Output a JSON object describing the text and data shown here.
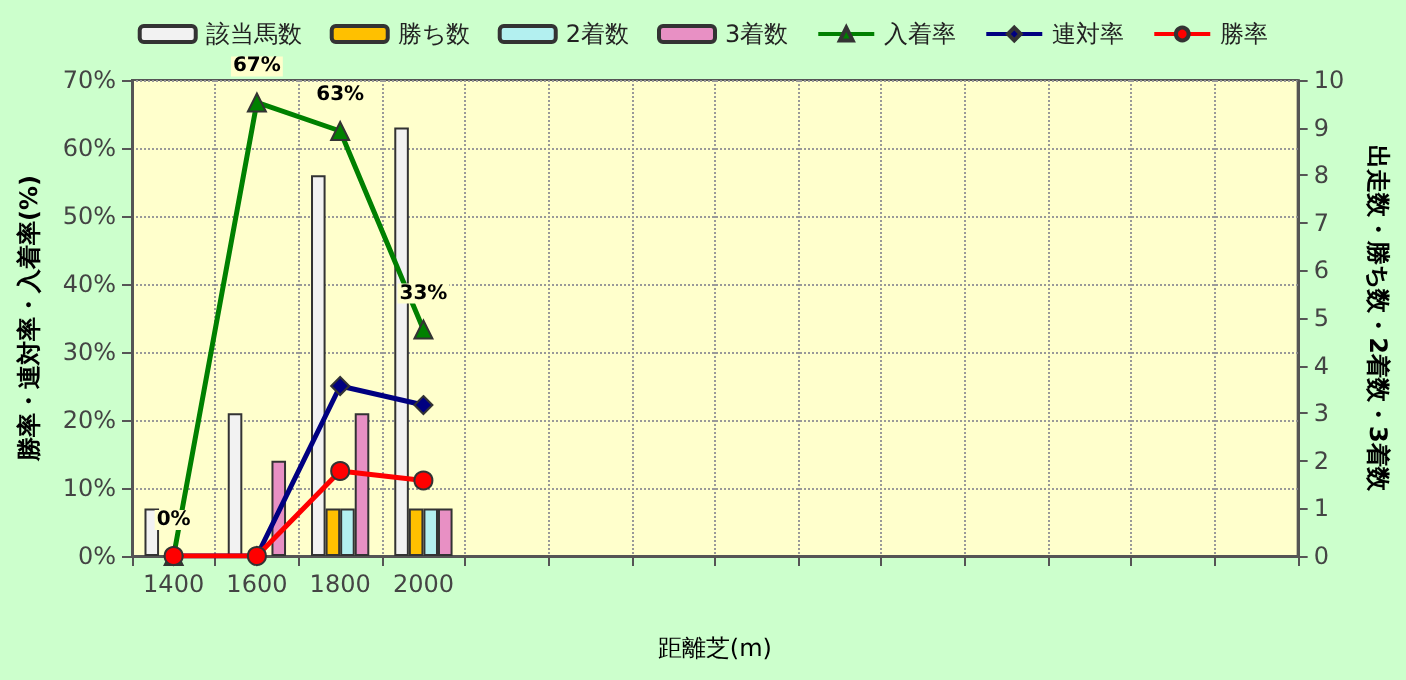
{
  "chart_data": {
    "type": "bar",
    "xlabel": "距離芝(m)",
    "ylabel": "勝率・連対率・入着率(%)",
    "y2label": "出走数・勝ち数・2着数・3着数",
    "categories": [
      "1400",
      "1600",
      "1800",
      "2000",
      null,
      null,
      null,
      null,
      null,
      null,
      null,
      null,
      null,
      null
    ],
    "series": [
      {
        "name": "該当馬数",
        "axis": "y2",
        "color": "#f2f2f2",
        "values": [
          1,
          3,
          8,
          9,
          null,
          null,
          null,
          null,
          null,
          null,
          null,
          null,
          null,
          null
        ]
      },
      {
        "name": "勝ち数",
        "axis": "y2",
        "color": "#ffc000",
        "values": [
          0,
          0,
          1,
          1,
          null,
          null,
          null,
          null,
          null,
          null,
          null,
          null,
          null,
          null
        ]
      },
      {
        "name": "2着数",
        "axis": "y2",
        "color": "#b3f0f0",
        "values": [
          0,
          0,
          1,
          1,
          null,
          null,
          null,
          null,
          null,
          null,
          null,
          null,
          null,
          null
        ]
      },
      {
        "name": "3着数",
        "axis": "y2",
        "color": "#e890c4",
        "values": [
          0,
          2,
          3,
          1,
          null,
          null,
          null,
          null,
          null,
          null,
          null,
          null,
          null,
          null
        ]
      },
      {
        "name": "入着率",
        "type": "line",
        "color": "#008000",
        "marker": "triangle",
        "values": [
          0,
          66.7,
          62.5,
          33.3,
          null,
          null,
          null,
          null,
          null,
          null,
          null,
          null,
          null,
          null
        ],
        "value_labels": [
          "0%",
          "67%",
          "63%",
          "33%",
          null,
          null,
          null,
          null,
          null,
          null,
          null,
          null,
          null,
          null
        ]
      },
      {
        "name": "連対率",
        "type": "line",
        "color": "#000080",
        "marker": "diamond",
        "values": [
          0,
          0,
          25,
          22.2,
          null,
          null,
          null,
          null,
          null,
          null,
          null,
          null,
          null,
          null
        ]
      },
      {
        "name": "勝率",
        "type": "line",
        "color": "#ff0000",
        "marker": "circle",
        "values": [
          0,
          0,
          12.5,
          11.1,
          null,
          null,
          null,
          null,
          null,
          null,
          null,
          null,
          null,
          null
        ]
      }
    ],
    "ylim": [
      0,
      70
    ],
    "yticks": [
      {
        "value": 0,
        "label": "0%"
      },
      {
        "value": 10,
        "label": "10%"
      },
      {
        "value": 20,
        "label": "20%"
      },
      {
        "value": 30,
        "label": "30%"
      },
      {
        "value": 40,
        "label": "40%"
      },
      {
        "value": 50,
        "label": "50%"
      },
      {
        "value": 60,
        "label": "60%"
      },
      {
        "value": 70,
        "label": "70%"
      }
    ],
    "y2lim": [
      0,
      10
    ],
    "y2ticks": [
      0,
      1,
      2,
      3,
      4,
      5,
      6,
      7,
      8,
      9,
      10
    ],
    "grid": true,
    "legend": "top",
    "line_style": "solid"
  }
}
